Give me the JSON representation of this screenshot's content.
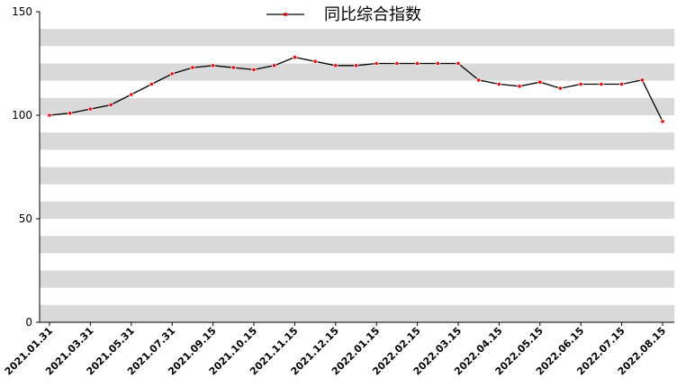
{
  "chart_data": {
    "type": "line",
    "categories": [
      "2021.01.31",
      null,
      "2021.03.31",
      null,
      "2021.05.31",
      null,
      "2021.07.31",
      null,
      "2021.09.15",
      null,
      "2021.10.15",
      null,
      "2021.11.15",
      null,
      "2021.12.15",
      null,
      "2022.01.15",
      null,
      "2022.02.15",
      null,
      "2022.03.15",
      null,
      "2022.04.15",
      null,
      "2022.05.15",
      null,
      "2022.06.15",
      null,
      "2022.07.15",
      null,
      "2022.08.15"
    ],
    "series": [
      {
        "name": "同比综合指数",
        "color": "#000000",
        "marker_color": "#ff0000",
        "values": [
          100,
          101,
          103,
          105,
          110,
          115,
          120,
          123,
          124,
          123,
          122,
          124,
          128,
          126,
          124,
          124,
          125,
          125,
          125,
          125,
          125,
          117,
          115,
          114,
          116,
          113,
          115,
          115,
          115,
          117,
          97
        ]
      }
    ],
    "ylim": [
      0,
      150
    ],
    "yticks": [
      0,
      50,
      100,
      150
    ],
    "legend": "top"
  }
}
